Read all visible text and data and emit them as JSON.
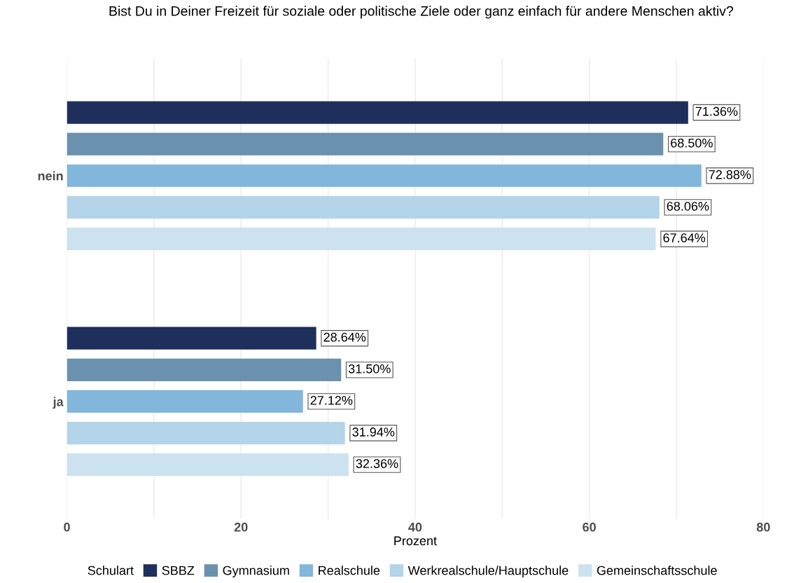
{
  "chart_data": {
    "type": "bar",
    "orientation": "horizontal",
    "title": "Bist Du in Deiner Freizeit für soziale oder politische Ziele oder ganz einfach für andere Menschen aktiv?",
    "xlabel": "Prozent",
    "legend_title": "Schulart",
    "legend": "bottom",
    "grid": "x",
    "categories": [
      "nein",
      "ja"
    ],
    "series": [
      {
        "name": "SBBZ",
        "color": "#1f2f5c",
        "values": [
          71.36,
          28.64
        ],
        "value_labels": [
          "71.36%",
          "28.64%"
        ]
      },
      {
        "name": "Gymnasium",
        "color": "#6a91ad",
        "values": [
          68.5,
          31.5
        ],
        "value_labels": [
          "68.50%",
          "31.50%"
        ]
      },
      {
        "name": "Realschule",
        "color": "#82b6db",
        "values": [
          72.88,
          27.12
        ],
        "value_labels": [
          "72.88%",
          "27.12%"
        ]
      },
      {
        "name": "Werkrealschule/Hauptschule",
        "color": "#b4d4e9",
        "values": [
          68.06,
          31.94
        ],
        "value_labels": [
          "68.06%",
          "31.94%"
        ]
      },
      {
        "name": "Gemeinschaftsschule",
        "color": "#cce2f0",
        "values": [
          67.64,
          32.36
        ],
        "value_labels": [
          "67.64%",
          "32.36%"
        ]
      }
    ],
    "xlim": [
      0,
      80
    ],
    "xticks": [
      0,
      {
        "value": 10,
        "label": null
      },
      20,
      {
        "value": 30,
        "label": null
      },
      40,
      {
        "value": 50,
        "label": null
      },
      60,
      {
        "value": 70,
        "label": null
      },
      80
    ]
  }
}
